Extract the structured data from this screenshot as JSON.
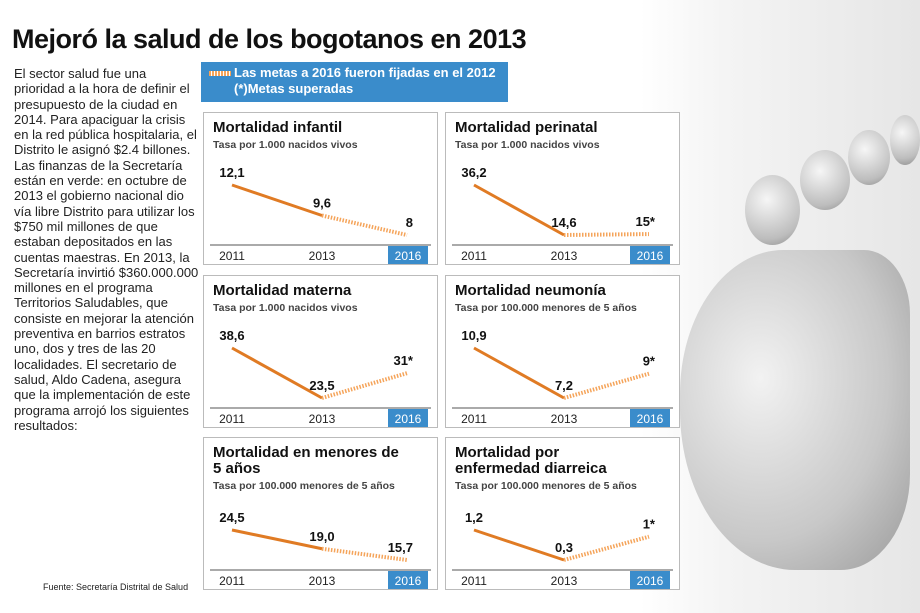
{
  "title": "Mejoró la salud de los bogotanos en 2013",
  "intro": "El sector salud fue una prioridad a la hora de definir el presupuesto de la ciudad en 2014. Para apaciguar la crisis en la red pública hospitalaria, el Distrito le  asignó $2.4 billones. Las finanzas de la Secretaría están en verde: en octubre de 2013 el gobierno nacional dio vía libre Distrito para utilizar los $750 mil millones de que estaban depositados en las cuentas maestras. En 2013, la Secretaría invirtió $360.000.000 millones en el programa Territorios Saludables, que consiste en mejorar la atención preventiva en barrios estratos uno, dos y tres de las 20 localidades. El secretario de salud, Aldo Cadena, asegura que la implementación de este programa arrojó los siguientes resultados:",
  "legend": {
    "line1": "Las metas a 2016 fueron fijadas en el 2012",
    "line2": "(*)Metas superadas"
  },
  "source": "Fuente: Secretaría Distrital de Salud",
  "colors": {
    "line": "#e07b24",
    "target": "#f5a45a",
    "highlight": "#3a8ccb"
  },
  "chart_data": [
    {
      "type": "line",
      "title": "Mortalidad infantil",
      "subtitle": "Tasa por 1.000 nacidos vivos",
      "categories": [
        "2011",
        "2013",
        "2016"
      ],
      "values": [
        12.1,
        9.6,
        8
      ],
      "labels": [
        "12,1",
        "9,6",
        "8"
      ]
    },
    {
      "type": "line",
      "title": "Mortalidad perinatal",
      "subtitle": "Tasa por 1.000 nacidos vivos",
      "categories": [
        "2011",
        "2013",
        "2016"
      ],
      "values": [
        36.2,
        14.6,
        15
      ],
      "labels": [
        "36,2",
        "14,6",
        "15*"
      ]
    },
    {
      "type": "line",
      "title": "Mortalidad materna",
      "subtitle": "Tasa por 1.000 nacidos vivos",
      "categories": [
        "2011",
        "2013",
        "2016"
      ],
      "values": [
        38.6,
        23.5,
        31
      ],
      "labels": [
        "38,6",
        "23,5",
        "31*"
      ]
    },
    {
      "type": "line",
      "title": "Mortalidad neumonía",
      "subtitle": "Tasa por 100.000 menores de 5 años",
      "categories": [
        "2011",
        "2013",
        "2016"
      ],
      "values": [
        10.9,
        7.2,
        9
      ],
      "labels": [
        "10,9",
        "7,2",
        "9*"
      ]
    },
    {
      "type": "line",
      "title": "Mortalidad en menores de 5 años",
      "subtitle": "Tasa por 100.000 menores de 5 años",
      "categories": [
        "2011",
        "2013",
        "2016"
      ],
      "values": [
        24.5,
        19.0,
        15.7
      ],
      "labels": [
        "24,5",
        "19,0",
        "15,7"
      ]
    },
    {
      "type": "line",
      "title": "Mortalidad por enfermedad diarreica",
      "subtitle": "Tasa por 100.000 menores de 5 años",
      "categories": [
        "2011",
        "2013",
        "2016"
      ],
      "values": [
        1.2,
        0.3,
        1
      ],
      "labels": [
        "1,2",
        "0,3",
        "1*"
      ]
    }
  ]
}
